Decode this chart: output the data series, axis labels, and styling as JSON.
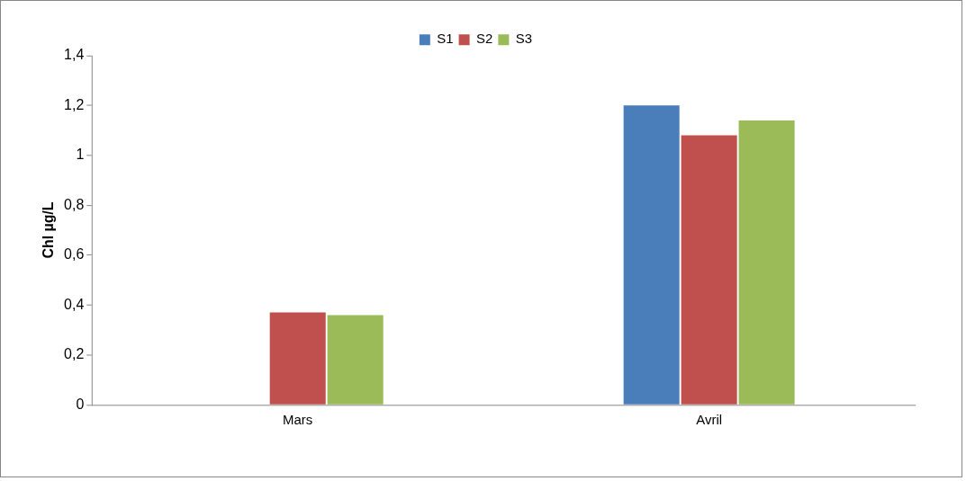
{
  "chart_data": {
    "type": "bar",
    "ylabel": "Chl µg/L",
    "categories": [
      "Mars",
      "Avril"
    ],
    "series": [
      {
        "name": "S1",
        "color": "#4a7ebb",
        "values": [
          null,
          1.2
        ]
      },
      {
        "name": "S2",
        "color": "#c0504d",
        "values": [
          0.37,
          1.08
        ]
      },
      {
        "name": "S3",
        "color": "#9bbb59",
        "values": [
          0.36,
          1.14
        ]
      }
    ],
    "ylim": [
      0,
      1.4
    ],
    "yticks": [
      0,
      {
        "value": 0.2,
        "label": "0,2"
      },
      {
        "value": 0.4,
        "label": "0,4"
      },
      {
        "value": 0.6,
        "label": "0,6"
      },
      {
        "value": 0.8,
        "label": "0,8"
      },
      1,
      {
        "value": 1.2,
        "label": "1,2"
      },
      {
        "value": 1.4,
        "label": "1,4"
      }
    ],
    "grid": false,
    "legend": "top"
  }
}
